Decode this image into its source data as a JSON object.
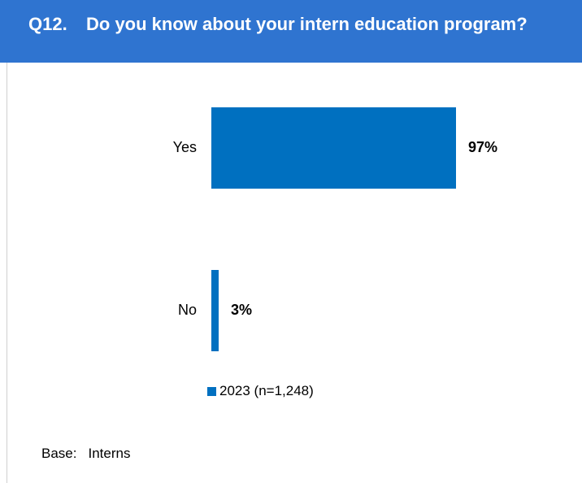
{
  "header": {
    "question_number": "Q12.",
    "question_text": "Do you know about your intern education program?"
  },
  "chart_data": {
    "type": "bar",
    "orientation": "horizontal",
    "categories": [
      "Yes",
      "No"
    ],
    "series": [
      {
        "name": "2023 (n=1,248)",
        "values": [
          97,
          3
        ],
        "color": "#0070c0"
      }
    ],
    "value_labels": [
      "97%",
      "3%"
    ],
    "xlim": [
      0,
      100
    ],
    "legend_position": "bottom",
    "grid": false
  },
  "footer": {
    "base_label": "Base:",
    "base_value": "Interns"
  },
  "colors": {
    "header_bg": "#2f74d0",
    "bar": "#0070c0"
  }
}
